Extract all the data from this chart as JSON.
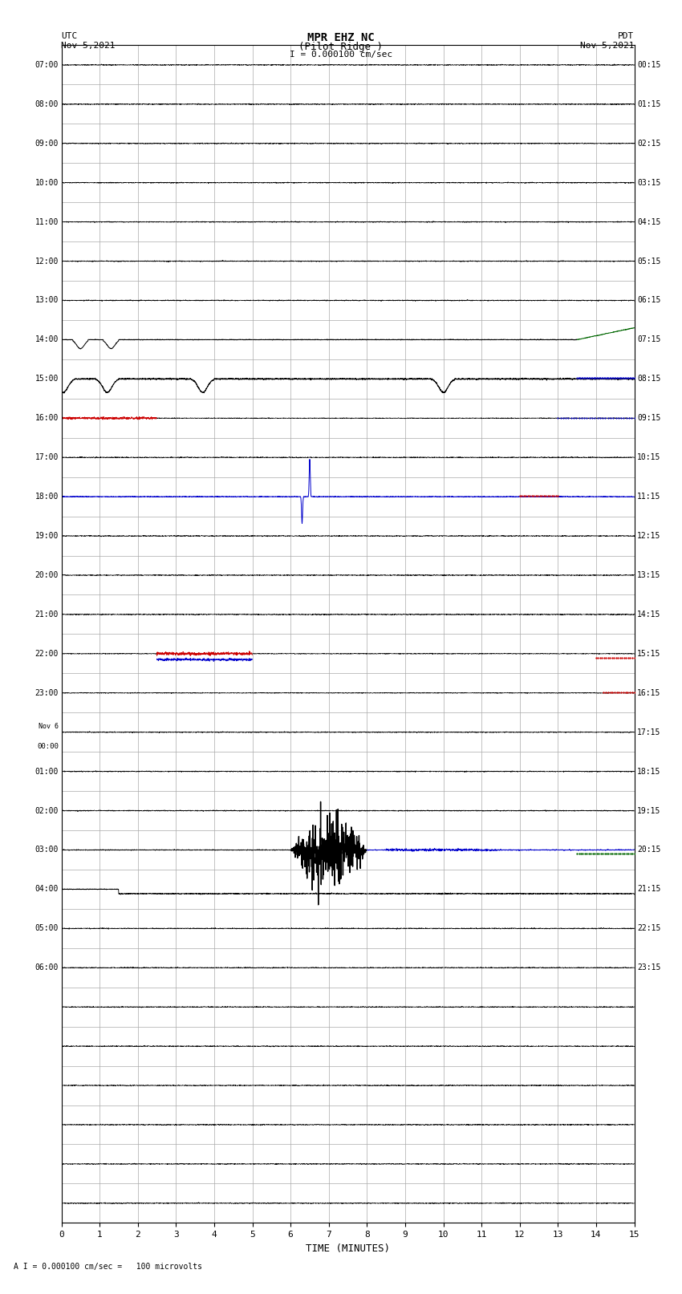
{
  "title_line1": "MPR EHZ NC",
  "title_line2": "(Pilot Ridge )",
  "title_scale": "I = 0.000100 cm/sec",
  "label_utc": "UTC",
  "label_utc_date": "Nov 5,2021",
  "label_pdt": "PDT",
  "label_pdt_date": "Nov 5,2021",
  "xlabel": "TIME (MINUTES)",
  "footer": "A I = 0.000100 cm/sec =   100 microvolts",
  "xlim": [
    0,
    15
  ],
  "xticks": [
    0,
    1,
    2,
    3,
    4,
    5,
    6,
    7,
    8,
    9,
    10,
    11,
    12,
    13,
    14,
    15
  ],
  "num_rows": 30,
  "row_labels_left": [
    "07:00",
    "08:00",
    "09:00",
    "10:00",
    "11:00",
    "12:00",
    "13:00",
    "14:00",
    "15:00",
    "16:00",
    "17:00",
    "18:00",
    "19:00",
    "20:00",
    "21:00",
    "22:00",
    "23:00",
    "Nov 6\n00:00",
    "01:00",
    "02:00",
    "03:00",
    "04:00",
    "05:00",
    "06:00",
    "",
    "",
    "",
    "",
    "",
    ""
  ],
  "row_labels_right": [
    "00:15",
    "01:15",
    "02:15",
    "03:15",
    "04:15",
    "05:15",
    "06:15",
    "07:15",
    "08:15",
    "09:15",
    "10:15",
    "11:15",
    "12:15",
    "13:15",
    "14:15",
    "15:15",
    "16:15",
    "17:15",
    "18:15",
    "19:15",
    "20:15",
    "21:15",
    "22:15",
    "23:15",
    "",
    "",
    "",
    "",
    "",
    ""
  ],
  "bg_color": "#ffffff",
  "grid_color": "#aaaaaa",
  "trace_color_black": "#000000",
  "trace_color_red": "#cc0000",
  "trace_color_blue": "#0000cc",
  "trace_color_green": "#006600"
}
